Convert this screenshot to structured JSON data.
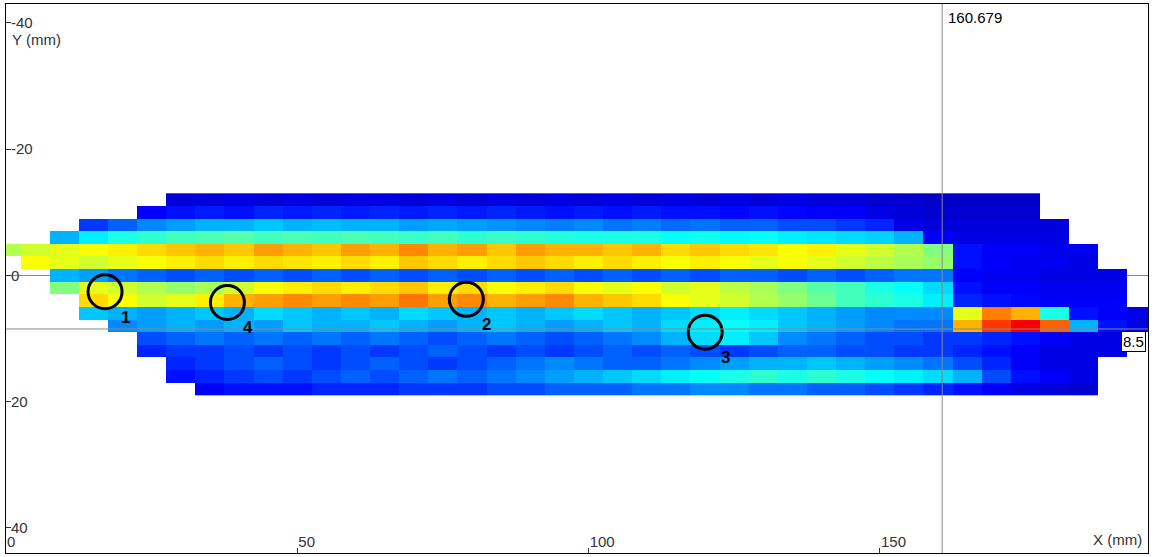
{
  "chart_data": {
    "type": "heatmap",
    "xlabel": "X (mm)",
    "ylabel": "Y (mm)",
    "xlim": [
      0,
      196
    ],
    "ylim": [
      -43,
      44
    ],
    "xticks": [
      0,
      50,
      100,
      150
    ],
    "yticks": [
      -40,
      -20,
      0,
      20,
      40
    ],
    "grid": false,
    "color_range": [
      0,
      100
    ],
    "cursors": {
      "x": 160.679,
      "y": 8.5
    },
    "annotations": [
      {
        "text": "1",
        "x": 17,
        "y": 2.6
      },
      {
        "text": "4",
        "x": 38,
        "y": 4.3
      },
      {
        "text": "2",
        "x": 79,
        "y": 3.8
      },
      {
        "text": "3",
        "x": 120,
        "y": 9
      }
    ],
    "x": [
      0,
      5,
      10,
      15,
      20,
      25,
      30,
      35,
      40,
      45,
      50,
      55,
      60,
      65,
      70,
      75,
      80,
      85,
      90,
      95,
      100,
      105,
      110,
      115,
      120,
      125,
      130,
      135,
      140,
      145,
      150,
      155,
      160,
      165,
      170,
      175,
      180,
      185,
      190,
      195
    ],
    "y": [
      -12,
      -10,
      -8,
      -6,
      -4,
      -2,
      0,
      2,
      4,
      6,
      8,
      10,
      12,
      14,
      16,
      18
    ],
    "z": [
      [
        null,
        null,
        null,
        null,
        null,
        null,
        9,
        9,
        10,
        9,
        10,
        9,
        10,
        10,
        9,
        10,
        9,
        10,
        9,
        10,
        9,
        10,
        9,
        10,
        9,
        10,
        9,
        10,
        9,
        9,
        8,
        8,
        7,
        7,
        7,
        7,
        null,
        null,
        null,
        null
      ],
      [
        null,
        null,
        null,
        null,
        null,
        12,
        14,
        15,
        14,
        16,
        15,
        16,
        15,
        16,
        15,
        16,
        15,
        16,
        15,
        14,
        15,
        14,
        15,
        14,
        14,
        13,
        14,
        13,
        12,
        12,
        10,
        9,
        8,
        8,
        8,
        8,
        null,
        null,
        null,
        null
      ],
      [
        null,
        null,
        null,
        18,
        22,
        26,
        28,
        30,
        30,
        32,
        30,
        31,
        30,
        30,
        28,
        29,
        28,
        27,
        26,
        25,
        26,
        24,
        25,
        23,
        24,
        22,
        22,
        20,
        20,
        18,
        16,
        10,
        9,
        9,
        9,
        9,
        9,
        null,
        null,
        null
      ],
      [
        null,
        null,
        30,
        36,
        40,
        42,
        44,
        45,
        46,
        44,
        45,
        44,
        45,
        44,
        43,
        44,
        42,
        43,
        42,
        41,
        40,
        40,
        40,
        38,
        39,
        37,
        38,
        36,
        35,
        34,
        33,
        30,
        12,
        10,
        10,
        10,
        10,
        null,
        null,
        null
      ],
      [
        55,
        58,
        60,
        62,
        64,
        66,
        68,
        70,
        68,
        72,
        70,
        68,
        72,
        70,
        74,
        70,
        72,
        68,
        72,
        70,
        70,
        68,
        70,
        66,
        68,
        66,
        65,
        62,
        64,
        60,
        58,
        55,
        50,
        14,
        12,
        12,
        11,
        11,
        null,
        null
      ],
      [
        null,
        62,
        60,
        58,
        60,
        62,
        64,
        66,
        64,
        66,
        65,
        64,
        66,
        64,
        68,
        66,
        64,
        66,
        68,
        66,
        64,
        66,
        64,
        62,
        64,
        62,
        60,
        62,
        60,
        58,
        56,
        54,
        52,
        14,
        12,
        11,
        11,
        10,
        null,
        null
      ],
      [
        null,
        null,
        30,
        28,
        24,
        22,
        20,
        22,
        20,
        22,
        20,
        22,
        20,
        22,
        20,
        22,
        20,
        22,
        20,
        22,
        20,
        22,
        20,
        22,
        20,
        22,
        22,
        20,
        22,
        20,
        22,
        24,
        24,
        12,
        11,
        11,
        10,
        10,
        10,
        null
      ],
      [
        null,
        null,
        50,
        60,
        58,
        55,
        52,
        54,
        58,
        62,
        64,
        66,
        64,
        66,
        68,
        64,
        66,
        62,
        64,
        66,
        62,
        60,
        62,
        58,
        60,
        56,
        54,
        50,
        46,
        44,
        40,
        38,
        34,
        14,
        12,
        12,
        11,
        11,
        11,
        null
      ],
      [
        null,
        null,
        null,
        66,
        62,
        58,
        60,
        64,
        70,
        72,
        74,
        72,
        74,
        72,
        76,
        72,
        74,
        70,
        72,
        74,
        70,
        68,
        66,
        62,
        60,
        58,
        55,
        52,
        48,
        44,
        42,
        40,
        36,
        16,
        14,
        13,
        12,
        12,
        12,
        null
      ],
      [
        null,
        null,
        null,
        32,
        30,
        28,
        30,
        32,
        30,
        34,
        32,
        30,
        32,
        30,
        34,
        32,
        30,
        32,
        30,
        32,
        34,
        32,
        30,
        32,
        34,
        36,
        34,
        32,
        30,
        28,
        26,
        26,
        26,
        60,
        75,
        70,
        40,
        14,
        12,
        10
      ],
      [
        null,
        null,
        null,
        null,
        26,
        28,
        30,
        28,
        30,
        28,
        32,
        30,
        30,
        32,
        30,
        28,
        30,
        32,
        30,
        28,
        30,
        32,
        30,
        34,
        36,
        38,
        36,
        32,
        30,
        28,
        26,
        24,
        24,
        70,
        82,
        88,
        78,
        30,
        14,
        10
      ],
      [
        null,
        null,
        null,
        null,
        null,
        20,
        22,
        24,
        22,
        24,
        22,
        24,
        22,
        24,
        22,
        20,
        22,
        24,
        22,
        20,
        22,
        24,
        26,
        30,
        34,
        36,
        32,
        26,
        24,
        22,
        20,
        20,
        18,
        18,
        16,
        14,
        12,
        10,
        10,
        null
      ],
      [
        null,
        null,
        null,
        null,
        null,
        16,
        18,
        18,
        20,
        18,
        20,
        18,
        20,
        18,
        20,
        22,
        20,
        18,
        20,
        18,
        20,
        22,
        20,
        22,
        20,
        18,
        20,
        22,
        22,
        20,
        20,
        18,
        18,
        16,
        14,
        12,
        10,
        10,
        10,
        null
      ],
      [
        null,
        null,
        null,
        null,
        null,
        null,
        16,
        18,
        20,
        22,
        20,
        18,
        20,
        22,
        20,
        18,
        20,
        22,
        24,
        26,
        24,
        22,
        22,
        24,
        26,
        28,
        30,
        30,
        32,
        30,
        28,
        26,
        24,
        20,
        16,
        12,
        10,
        10,
        null,
        null
      ],
      [
        null,
        null,
        null,
        null,
        null,
        null,
        14,
        16,
        18,
        20,
        18,
        20,
        22,
        20,
        22,
        24,
        22,
        24,
        26,
        28,
        30,
        32,
        34,
        36,
        38,
        40,
        42,
        40,
        42,
        40,
        38,
        36,
        34,
        30,
        20,
        14,
        12,
        10,
        null,
        null
      ],
      [
        null,
        null,
        null,
        null,
        null,
        null,
        null,
        12,
        14,
        14,
        14,
        16,
        16,
        16,
        18,
        18,
        18,
        20,
        20,
        22,
        22,
        22,
        24,
        24,
        26,
        26,
        24,
        24,
        22,
        22,
        20,
        18,
        16,
        14,
        12,
        10,
        9,
        8,
        null,
        null
      ]
    ]
  }
}
